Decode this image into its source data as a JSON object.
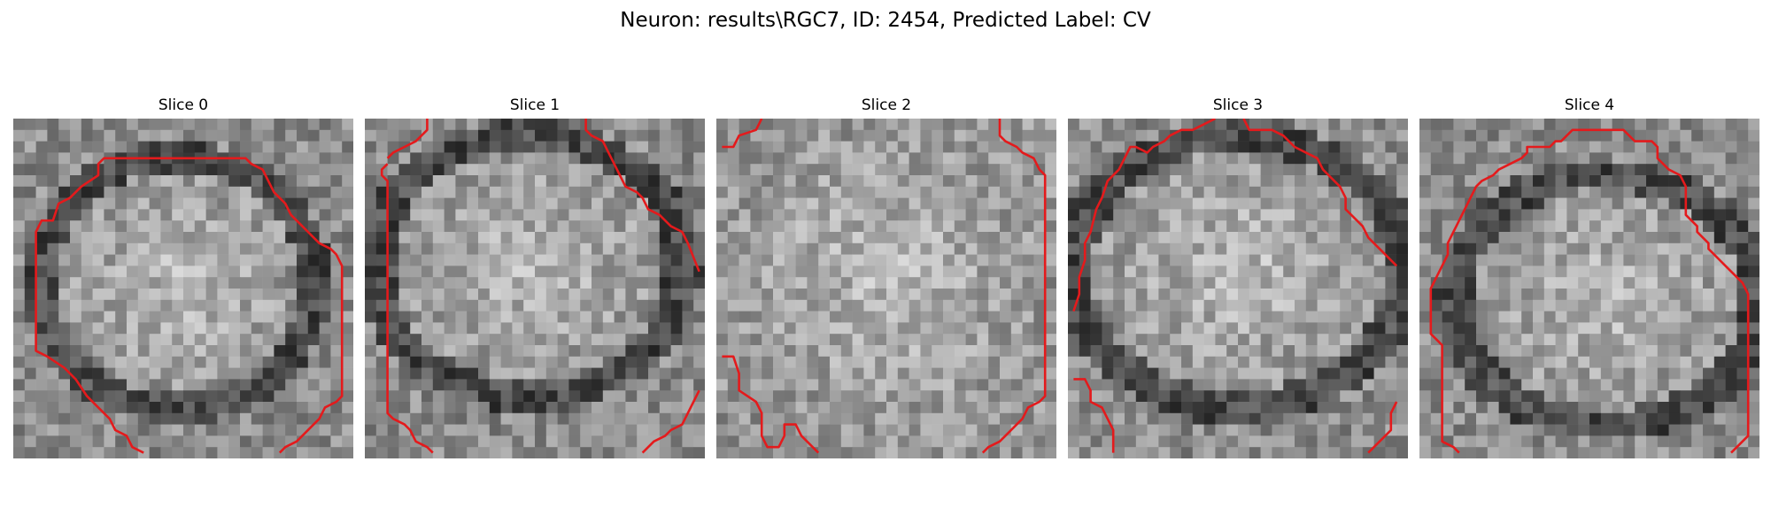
{
  "figure": {
    "title": "Neuron: results\\RGC7, ID: 2454, Predicted Label: CV"
  },
  "colors": {
    "contour": "#e41a1c",
    "background": "#ffffff"
  },
  "panels": [
    {
      "title": "Slice 0"
    },
    {
      "title": "Slice 1"
    },
    {
      "title": "Slice 2"
    },
    {
      "title": "Slice 3"
    },
    {
      "title": "Slice 4"
    }
  ]
}
